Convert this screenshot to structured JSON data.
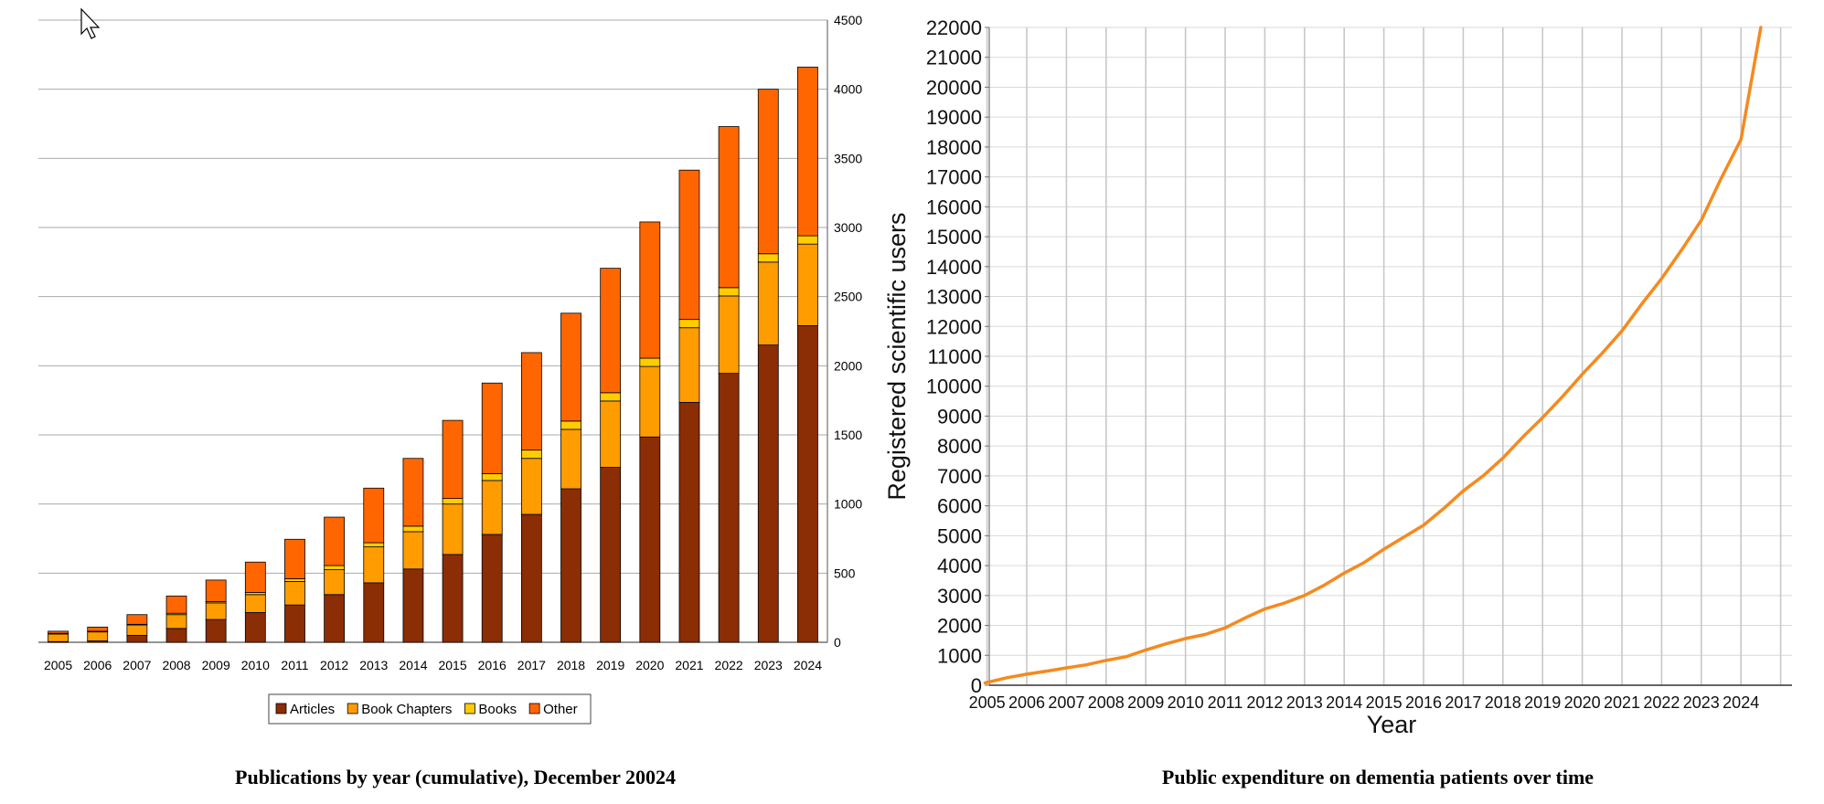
{
  "chart_data": [
    {
      "type": "bar",
      "stacked": true,
      "categories": [
        "2005",
        "2006",
        "2007",
        "2008",
        "2009",
        "2010",
        "2011",
        "2012",
        "2013",
        "2014",
        "2015",
        "2016",
        "2017",
        "2018",
        "2019",
        "2020",
        "2021",
        "2022",
        "2023",
        "2024"
      ],
      "series": [
        {
          "name": "Articles",
          "color": "#8b2d05",
          "values": [
            5,
            10,
            50,
            100,
            165,
            215,
            270,
            345,
            430,
            530,
            635,
            780,
            925,
            1110,
            1265,
            1485,
            1735,
            1945,
            2150,
            2290
          ]
        },
        {
          "name": "Book Chapters",
          "color": "#ff9c00",
          "values": [
            55,
            65,
            75,
            100,
            120,
            130,
            170,
            180,
            260,
            270,
            365,
            390,
            405,
            430,
            480,
            510,
            540,
            560,
            600,
            590
          ]
        },
        {
          "name": "Books",
          "color": "#ffcc00",
          "values": [
            5,
            5,
            5,
            10,
            10,
            15,
            20,
            30,
            30,
            40,
            40,
            50,
            60,
            60,
            60,
            60,
            60,
            60,
            60,
            60
          ]
        },
        {
          "name": "Other",
          "color": "#ff6600",
          "values": [
            15,
            30,
            70,
            125,
            155,
            220,
            285,
            350,
            395,
            490,
            565,
            655,
            705,
            780,
            900,
            985,
            1080,
            1165,
            1190,
            1220
          ]
        }
      ],
      "ylim": [
        0,
        4500
      ],
      "yticks": [
        0,
        500,
        1000,
        1500,
        2000,
        2500,
        3000,
        3500,
        4000,
        4500
      ],
      "y_axis_side": "right",
      "grid": true,
      "legend": {
        "placement": "bottom-center",
        "entries": [
          "Articles",
          "Book Chapters",
          "Books",
          "Other"
        ]
      },
      "caption": "Publications by year (cumulative), December 20024"
    },
    {
      "type": "line",
      "series": [
        {
          "color": "#f58a1f",
          "x": [
            2004.95,
            2005.5,
            2006,
            2006.5,
            2007,
            2007.5,
            2008,
            2008.5,
            2009,
            2009.5,
            2010,
            2010.5,
            2011,
            2011.5,
            2012,
            2012.5,
            2013,
            2013.5,
            2014,
            2014.5,
            2015,
            2015.5,
            2016,
            2016.5,
            2017,
            2017.5,
            2018,
            2018.5,
            2019,
            2019.5,
            2020,
            2020.5,
            2021,
            2021.5,
            2022,
            2022.5,
            2023,
            2023.5,
            2024,
            2024.5
          ],
          "y": [
            80,
            250,
            370,
            470,
            580,
            680,
            830,
            950,
            1180,
            1380,
            1560,
            1700,
            1920,
            2250,
            2550,
            2750,
            3000,
            3350,
            3750,
            4100,
            4550,
            4950,
            5350,
            5900,
            6500,
            7000,
            7600,
            8300,
            8950,
            9650,
            10400,
            11100,
            11850,
            12750,
            13600,
            14550,
            15550,
            16950,
            18250,
            22000
          ]
        }
      ],
      "xlabel": "Year",
      "ylabel": "Registered scientific users",
      "xticks": [
        2005,
        2006,
        2007,
        2008,
        2009,
        2010,
        2011,
        2012,
        2013,
        2014,
        2015,
        2016,
        2017,
        2018,
        2019,
        2020,
        2021,
        2022,
        2023,
        2024
      ],
      "ylim": [
        0,
        22000
      ],
      "yticks": [
        0,
        1000,
        2000,
        3000,
        4000,
        5000,
        6000,
        7000,
        8000,
        9000,
        10000,
        11000,
        12000,
        13000,
        14000,
        15000,
        16000,
        17000,
        18000,
        19000,
        20000,
        21000,
        22000
      ],
      "grid": true,
      "caption": "Public expenditure on dementia patients over time"
    }
  ]
}
